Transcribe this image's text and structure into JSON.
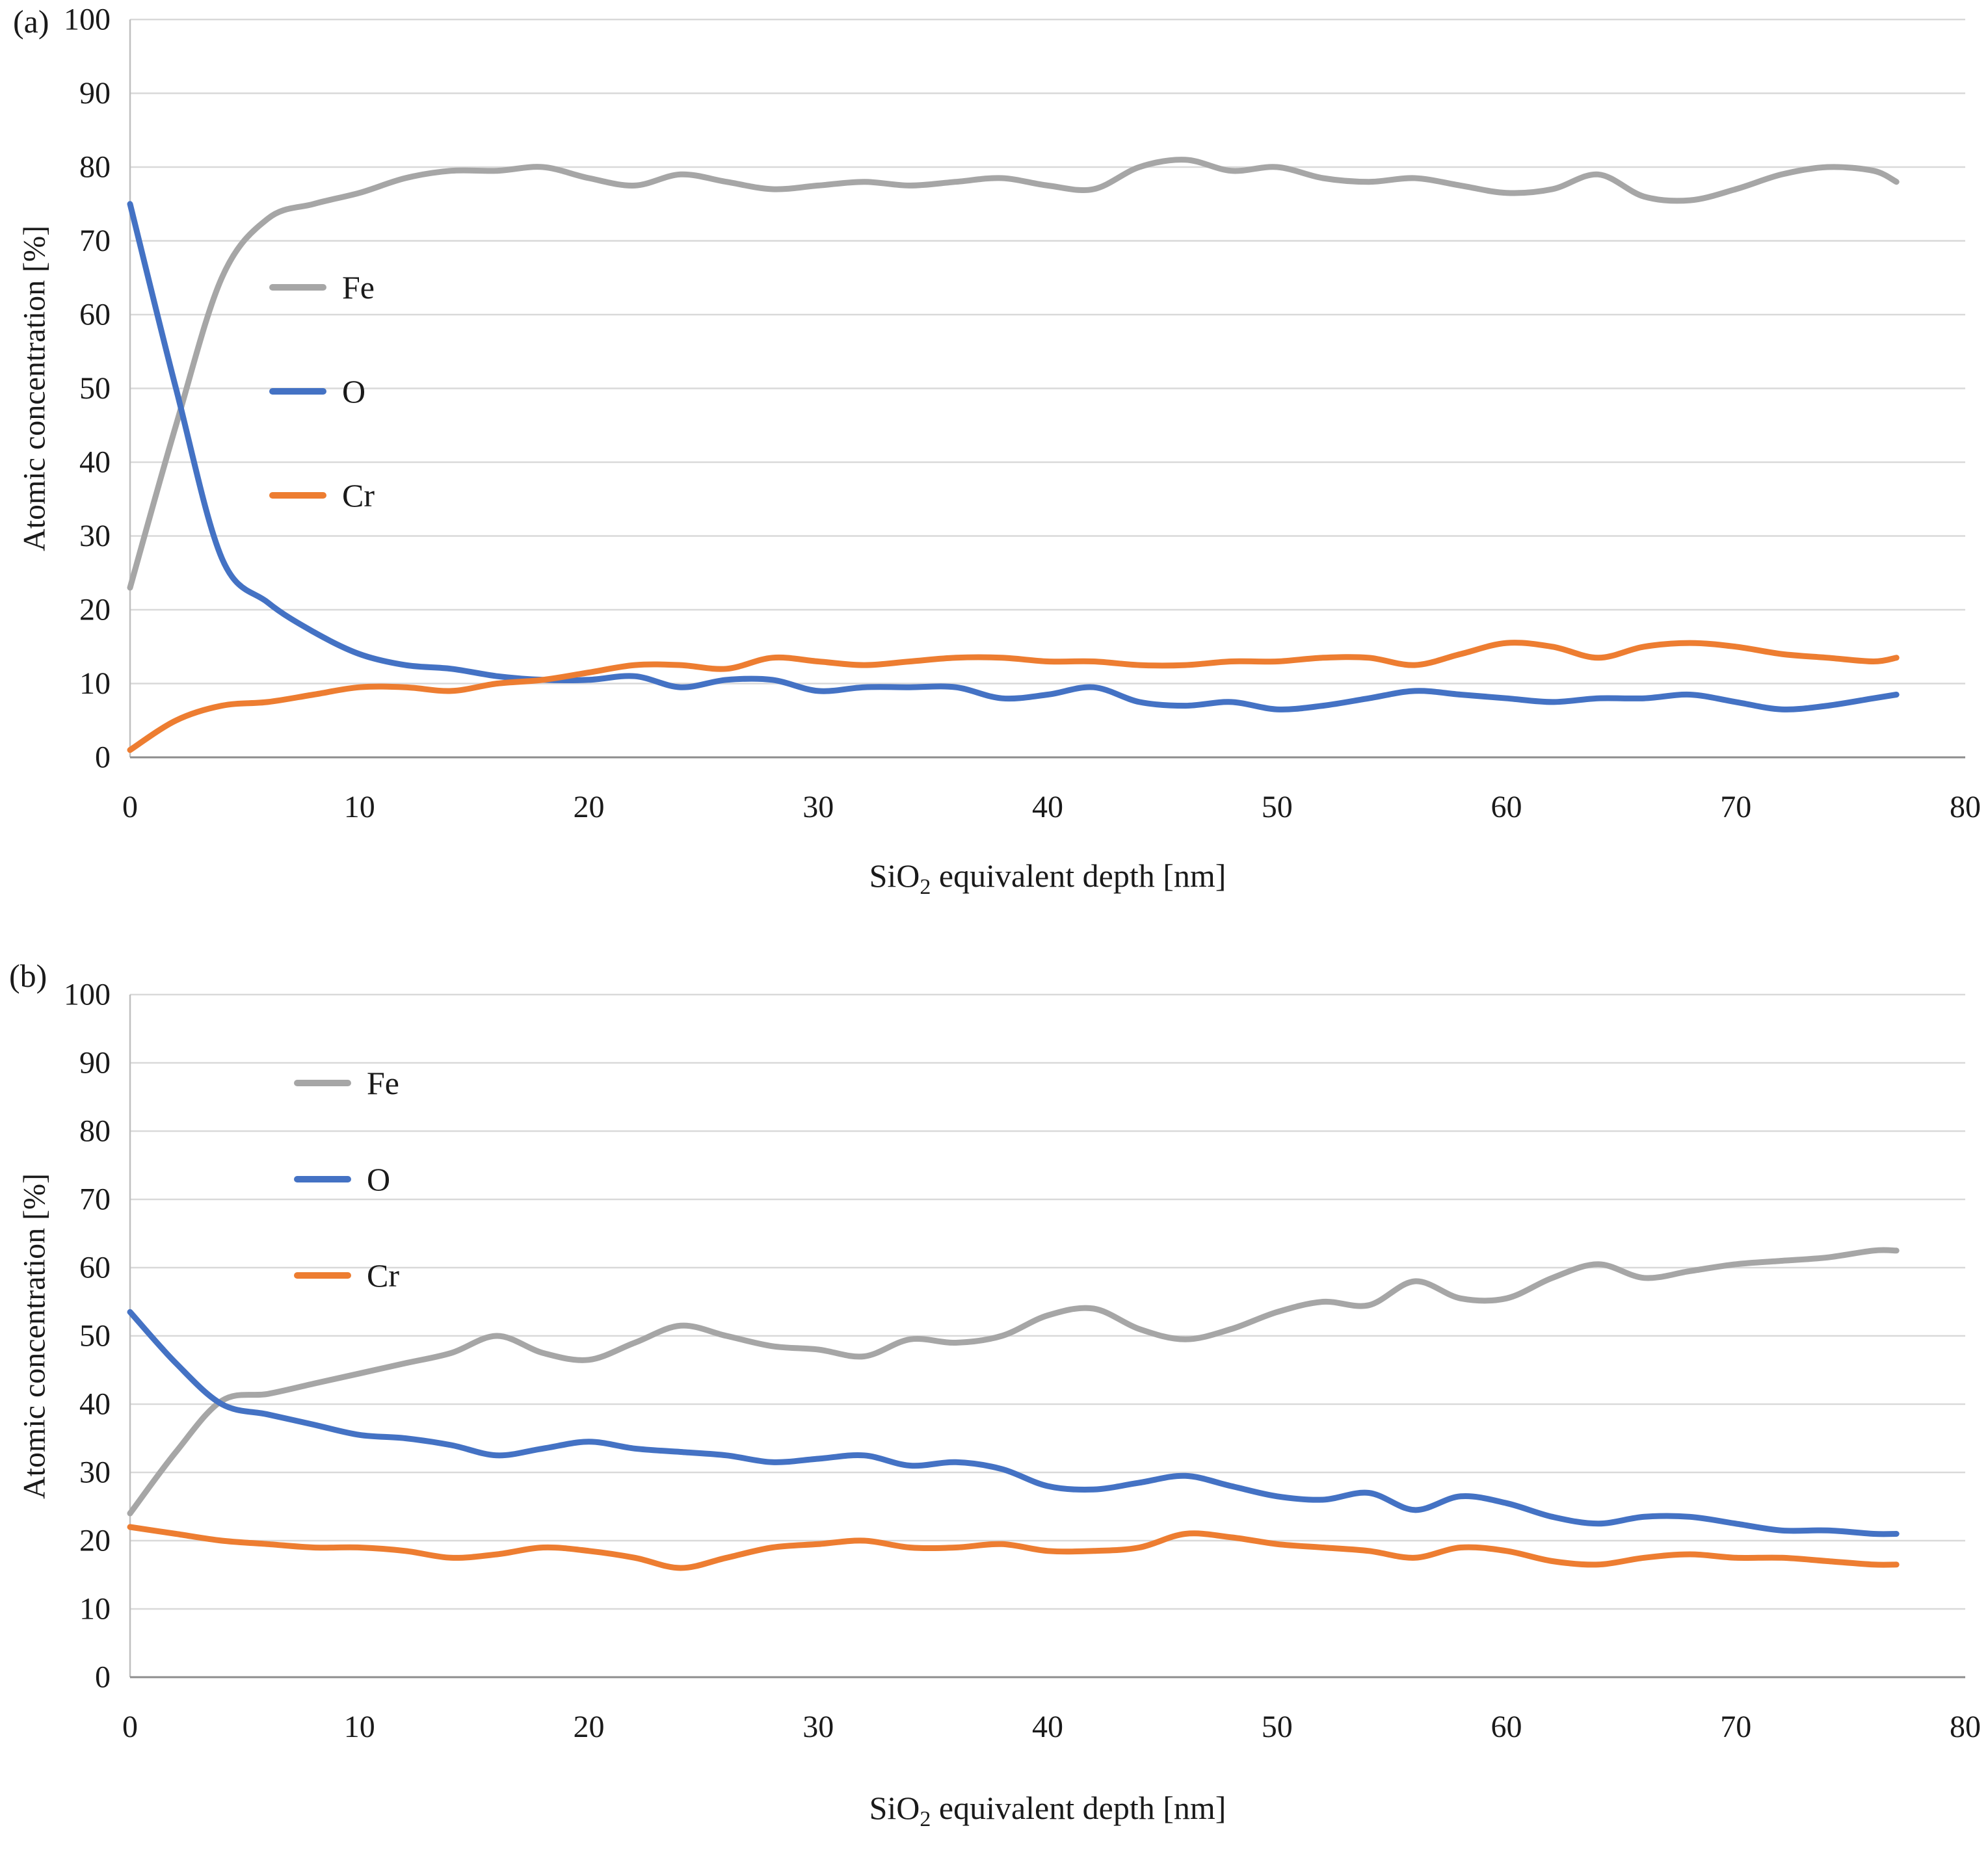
{
  "styles": {
    "background": "#ffffff",
    "grid_color": "#d9d9d9",
    "axis_color": "#8c8c8c",
    "axis_color_light": "#bfbfbf",
    "text_color": "#1a1a1a"
  },
  "chart_data": [
    {
      "id": "a",
      "panel_label": "(a)",
      "type": "line",
      "title": "",
      "ylabel": "Atomic concentration [%]",
      "xlabel": {
        "pre": "SiO",
        "sub": "2",
        "post": " equivalent depth [nm]"
      },
      "xlim": [
        0,
        80
      ],
      "ylim": [
        0,
        100
      ],
      "xticks": [
        0,
        10,
        20,
        30,
        40,
        50,
        60,
        70,
        80
      ],
      "yticks": [
        0,
        10,
        20,
        30,
        40,
        50,
        60,
        70,
        80,
        90,
        100
      ],
      "grid": "horizontal",
      "legend_position": "inside-upper-left",
      "x": [
        0,
        2,
        4,
        6,
        8,
        10,
        12,
        14,
        16,
        18,
        20,
        22,
        24,
        26,
        28,
        30,
        32,
        34,
        36,
        38,
        40,
        42,
        44,
        46,
        48,
        50,
        52,
        54,
        56,
        58,
        60,
        62,
        64,
        66,
        68,
        70,
        72,
        74,
        76,
        77
      ],
      "series": [
        {
          "name": "Fe",
          "color": "#a6a6a6",
          "values": [
            23,
            45,
            65,
            73,
            75,
            76.5,
            78.5,
            79.5,
            79.5,
            80,
            78.5,
            77.5,
            79,
            78,
            77,
            77.5,
            78,
            77.5,
            78,
            78.5,
            77.5,
            77,
            80,
            81,
            79.5,
            80,
            78.5,
            78,
            78.5,
            77.5,
            76.5,
            77,
            79,
            76,
            75.5,
            77,
            79,
            80,
            79.5,
            78
          ]
        },
        {
          "name": "O",
          "color": "#4472c4",
          "values": [
            75,
            50,
            27,
            21,
            17,
            14,
            12.5,
            12,
            11,
            10.5,
            10.5,
            11,
            9.5,
            10.5,
            10.5,
            9,
            9.5,
            9.5,
            9.5,
            8,
            8.5,
            9.5,
            7.5,
            7,
            7.5,
            6.5,
            7,
            8,
            9,
            8.5,
            8,
            7.5,
            8,
            8,
            8.5,
            7.5,
            6.5,
            7,
            8,
            8.5
          ]
        },
        {
          "name": "Cr",
          "color": "#ed7d31",
          "values": [
            1,
            5,
            7,
            7.5,
            8.5,
            9.5,
            9.5,
            9,
            10,
            10.5,
            11.5,
            12.5,
            12.5,
            12,
            13.5,
            13,
            12.5,
            13,
            13.5,
            13.5,
            13,
            13,
            12.5,
            12.5,
            13,
            13,
            13.5,
            13.5,
            12.5,
            14,
            15.5,
            15,
            13.5,
            15,
            15.5,
            15,
            14,
            13.5,
            13,
            13.5
          ]
        }
      ]
    },
    {
      "id": "b",
      "panel_label": "(b)",
      "type": "line",
      "title": "",
      "ylabel": "Atomic concentration [%]",
      "xlabel": {
        "pre": "SiO",
        "sub": "2",
        "post": " equivalent depth [nm]"
      },
      "xlim": [
        0,
        80
      ],
      "ylim": [
        0,
        100
      ],
      "xticks": [
        0,
        10,
        20,
        30,
        40,
        50,
        60,
        70,
        80
      ],
      "yticks": [
        0,
        10,
        20,
        30,
        40,
        50,
        60,
        70,
        80,
        90,
        100
      ],
      "grid": "horizontal",
      "legend_position": "inside-upper-left",
      "x": [
        0,
        2,
        4,
        6,
        8,
        10,
        12,
        14,
        16,
        18,
        20,
        22,
        24,
        26,
        28,
        30,
        32,
        34,
        36,
        38,
        40,
        42,
        44,
        46,
        48,
        50,
        52,
        54,
        56,
        58,
        60,
        62,
        64,
        66,
        68,
        70,
        72,
        74,
        76,
        77
      ],
      "series": [
        {
          "name": "Fe",
          "color": "#a6a6a6",
          "values": [
            24,
            33,
            40.5,
            41.5,
            43,
            44.5,
            46,
            47.5,
            50,
            47.5,
            46.5,
            49,
            51.5,
            50,
            48.5,
            48,
            47,
            49.5,
            49,
            50,
            53,
            54,
            51,
            49.5,
            51,
            53.5,
            55,
            54.5,
            58,
            55.5,
            55.5,
            58.5,
            60.5,
            58.5,
            59.5,
            60.5,
            61,
            61.5,
            62.5,
            62.5
          ]
        },
        {
          "name": "O",
          "color": "#4472c4",
          "values": [
            53.5,
            46,
            40,
            38.5,
            37,
            35.5,
            35,
            34,
            32.5,
            33.5,
            34.5,
            33.5,
            33,
            32.5,
            31.5,
            32,
            32.5,
            31,
            31.5,
            30.5,
            28,
            27.5,
            28.5,
            29.5,
            28,
            26.5,
            26,
            27,
            24.5,
            26.5,
            25.5,
            23.5,
            22.5,
            23.5,
            23.5,
            22.5,
            21.5,
            21.5,
            21,
            21
          ]
        },
        {
          "name": "Cr",
          "color": "#ed7d31",
          "values": [
            22,
            21,
            20,
            19.5,
            19,
            19,
            18.5,
            17.5,
            18,
            19,
            18.5,
            17.5,
            16,
            17.5,
            19,
            19.5,
            20,
            19,
            19,
            19.5,
            18.5,
            18.5,
            19,
            21,
            20.5,
            19.5,
            19,
            18.5,
            17.5,
            19,
            18.5,
            17,
            16.5,
            17.5,
            18,
            17.5,
            17.5,
            17,
            16.5,
            16.5
          ]
        }
      ]
    }
  ]
}
